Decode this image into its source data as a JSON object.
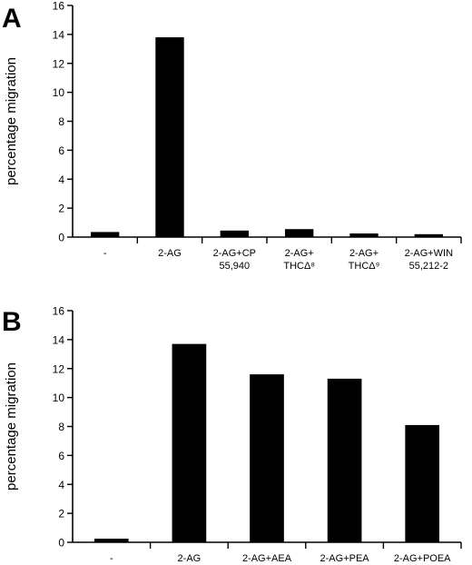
{
  "chart_data": [
    {
      "panel_label": "A",
      "type": "bar",
      "ylabel": "percentage migration",
      "ylim": [
        0,
        16
      ],
      "yticks": [
        0,
        2,
        4,
        6,
        8,
        10,
        12,
        14,
        16
      ],
      "categories": [
        [
          "-"
        ],
        [
          "2-AG"
        ],
        [
          "2-AG+CP",
          "55,940"
        ],
        [
          "2-AG+",
          "THCΔ⁸"
        ],
        [
          "2-AG+",
          "THCΔ⁹"
        ],
        [
          "2-AG+WIN",
          "55,212-2"
        ]
      ],
      "values": [
        0.35,
        13.8,
        0.45,
        0.55,
        0.25,
        0.2
      ],
      "bar_color": "#000000"
    },
    {
      "panel_label": "B",
      "type": "bar",
      "ylabel": "percentage migration",
      "ylim": [
        0,
        16
      ],
      "yticks": [
        0,
        2,
        4,
        6,
        8,
        10,
        12,
        14,
        16
      ],
      "categories": [
        [
          "-"
        ],
        [
          "2-AG"
        ],
        [
          "2-AG+AEA"
        ],
        [
          "2-AG+PEA"
        ],
        [
          "2-AG+POEA"
        ]
      ],
      "values": [
        0.25,
        13.7,
        11.6,
        11.3,
        8.1
      ],
      "bar_color": "#000000"
    }
  ]
}
